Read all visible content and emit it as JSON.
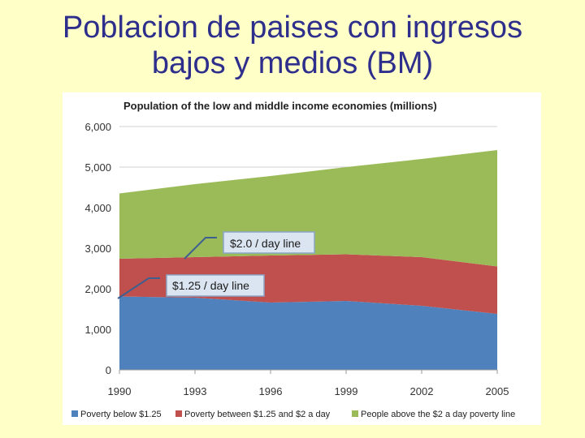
{
  "slide": {
    "title_line1": "Poblacion de paises con ingresos",
    "title_line2": "bajos y medios (BM)"
  },
  "chart_data": {
    "type": "area",
    "stacked": true,
    "title": "Population of the low and middle income economies (millions)",
    "x": [
      1990,
      1993,
      1996,
      1999,
      2002,
      2005
    ],
    "x_tick_labels": [
      "1990",
      "1993",
      "1996",
      "1999",
      "2002",
      "2005"
    ],
    "ylim": [
      0,
      6000
    ],
    "y_ticks": [
      0,
      1000,
      2000,
      3000,
      4000,
      5000,
      6000
    ],
    "y_tick_labels": [
      "0",
      "1,000",
      "2,000",
      "3,000",
      "4,000",
      "5,000",
      "6,000"
    ],
    "grid": true,
    "legend_position": "bottom",
    "series": [
      {
        "name": "Poverty below $1.25",
        "color": "#4f81bd",
        "values": [
          1810,
          1780,
          1660,
          1700,
          1580,
          1380
        ]
      },
      {
        "name": "Poverty between $1.25 and $2 a day",
        "color": "#c0504d",
        "values": [
          930,
          1000,
          1160,
          1150,
          1200,
          1170
        ]
      },
      {
        "name": "People above the $2 a day poverty line",
        "color": "#9bbb59",
        "values": [
          1610,
          1800,
          1960,
          2150,
          2420,
          2870
        ]
      }
    ],
    "annotations": [
      {
        "text": "$2.0 / day line",
        "points_to": "top of Poverty between $1.25 and $2 a day"
      },
      {
        "text": "$1.25 / day line",
        "points_to": "top of Poverty below $1.25"
      }
    ]
  }
}
